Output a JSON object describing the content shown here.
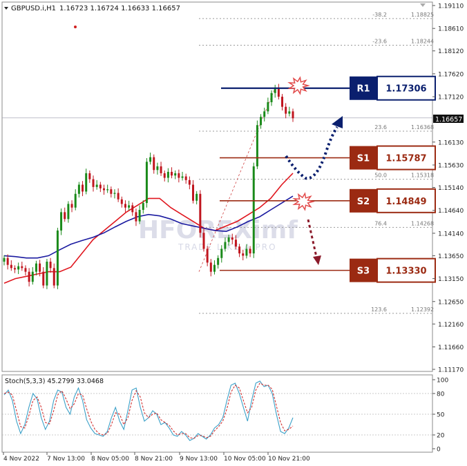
{
  "header": {
    "symbol": "GBPUSD.i,H1",
    "ohlc": "1.16723 1.16724 1.16633 1.16657"
  },
  "price_tag": "1.16657",
  "levels": [
    {
      "name": "R1",
      "value": "1.17306",
      "price": 1.17306,
      "kind": "resistance"
    },
    {
      "name": "S1",
      "value": "1.15787",
      "price": 1.15787,
      "kind": "support"
    },
    {
      "name": "S2",
      "value": "1.14849",
      "price": 1.14849,
      "kind": "support"
    },
    {
      "name": "S3",
      "value": "1.13330",
      "price": 1.1333,
      "kind": "support"
    }
  ],
  "fibo": [
    {
      "label": "-38.2",
      "value": "1.18825",
      "price": 1.18825
    },
    {
      "label": "-23.6",
      "value": "1.18244",
      "price": 1.18244
    },
    {
      "label": "23.6",
      "value": "1.16368",
      "price": 1.16368
    },
    {
      "label": "50.0",
      "value": "1.15318",
      "price": 1.15318
    },
    {
      "label": "76.4",
      "value": "1.14268",
      "price": 1.14268
    },
    {
      "label": "123.6",
      "value": "1.12392",
      "price": 1.12392
    }
  ],
  "watermark": {
    "brand": "HFOREXimf",
    "tagline": "TRADE LIKE A PRO"
  },
  "stoch": {
    "label": "Stoch(5,3,3) 45.2799 33.0468",
    "scale": [
      "100",
      "80",
      "50",
      "20",
      "0"
    ],
    "main": [
      78,
      85,
      70,
      40,
      22,
      35,
      60,
      80,
      72,
      45,
      28,
      40,
      70,
      85,
      82,
      60,
      50,
      75,
      88,
      70,
      42,
      30,
      22,
      20,
      18,
      25,
      45,
      60,
      40,
      28,
      55,
      85,
      88,
      60,
      40,
      45,
      55,
      50,
      35,
      38,
      30,
      20,
      18,
      25,
      20,
      12,
      15,
      22,
      18,
      14,
      20,
      30,
      35,
      45,
      70,
      92,
      95,
      80,
      60,
      40,
      70,
      95,
      98,
      90,
      92,
      80,
      50,
      25,
      22,
      30,
      45
    ],
    "signal": [
      80,
      82,
      78,
      55,
      32,
      30,
      48,
      70,
      75,
      60,
      38,
      36,
      55,
      78,
      84,
      72,
      58,
      65,
      80,
      78,
      58,
      40,
      28,
      22,
      20,
      22,
      35,
      52,
      50,
      35,
      45,
      70,
      84,
      75,
      52,
      45,
      50,
      52,
      42,
      38,
      34,
      26,
      20,
      22,
      22,
      16,
      15,
      19,
      19,
      16,
      18,
      26,
      32,
      40,
      58,
      82,
      92,
      88,
      70,
      52,
      60,
      85,
      95,
      92,
      92,
      86,
      62,
      38,
      26,
      28,
      33
    ]
  },
  "colors": {
    "candle_up": "#1a8a1a",
    "candle_down": "#c0151e",
    "ma_fast": "#e0161e",
    "ma_slow": "#1a1aa0",
    "resistance": "#0a1f6e",
    "support": "#9b2a12",
    "fibo": "#999999"
  },
  "chart_data": {
    "type": "candlestick",
    "y_axis": {
      "min": 1.1117,
      "max": 1.1911,
      "ticks": [
        "1.19110",
        "1.18610",
        "1.18120",
        "1.17620",
        "1.17120",
        "1.16130",
        "1.15630",
        "1.15140",
        "1.14640",
        "1.14140",
        "1.13650",
        "1.13150",
        "1.12650",
        "1.12160",
        "1.11660",
        "1.11170"
      ]
    },
    "x_labels": [
      "4 Nov 2022",
      "7 Nov 13:00",
      "8 Nov 05:00",
      "8 Nov 21:00",
      "9 Nov 13:00",
      "10 Nov 05:00",
      "10 Nov 21:00"
    ],
    "close_path": [
      1.136,
      1.1345,
      1.1338,
      1.1335,
      1.1342,
      1.1338,
      1.133,
      1.1308,
      1.133,
      1.1348,
      1.133,
      1.13,
      1.1352,
      1.1338,
      1.13,
      1.142,
      1.146,
      1.1445,
      1.1478,
      1.147,
      1.15,
      1.152,
      1.1505,
      1.1545,
      1.1532,
      1.1515,
      1.152,
      1.1512,
      1.1508,
      1.151,
      1.15,
      1.1502,
      1.1488,
      1.1478,
      1.147,
      1.1475,
      1.146,
      1.144,
      1.1465,
      1.148,
      1.157,
      1.158,
      1.1552,
      1.156,
      1.1545,
      1.1535,
      1.1548,
      1.154,
      1.1545,
      1.1535,
      1.1538,
      1.153,
      1.152,
      1.1485,
      1.15,
      1.1415,
      1.138,
      1.135,
      1.133,
      1.1345,
      1.136,
      1.138,
      1.1395,
      1.1405,
      1.14,
      1.1385,
      1.137,
      1.1365,
      1.138,
      1.137,
      1.156,
      1.165,
      1.1668,
      1.168,
      1.17,
      1.172,
      1.173,
      1.1712,
      1.169,
      1.1675,
      1.168,
      1.1665
    ],
    "series": [
      {
        "name": "",
        "type": "line",
        "values": [
          1.1305,
          1.1315,
          1.132,
          1.1325,
          1.133,
          1.133,
          1.134,
          1.137,
          1.14,
          1.142,
          1.144,
          1.146,
          1.1475,
          1.149,
          1.149,
          1.147,
          1.1455,
          1.144,
          1.1425,
          1.142,
          1.143,
          1.144,
          1.1455,
          1.147,
          1.149,
          1.152,
          1.1545
        ]
      },
      {
        "name": "",
        "type": "line",
        "values": [
          1.1365,
          1.1363,
          1.136,
          1.136,
          1.1365,
          1.1378,
          1.139,
          1.1398,
          1.1405,
          1.1415,
          1.1428,
          1.144,
          1.145,
          1.1455,
          1.1452,
          1.1445,
          1.1435,
          1.143,
          1.1425,
          1.142,
          1.1418,
          1.1428,
          1.144,
          1.145,
          1.1465,
          1.148,
          1.1495
        ]
      }
    ]
  }
}
